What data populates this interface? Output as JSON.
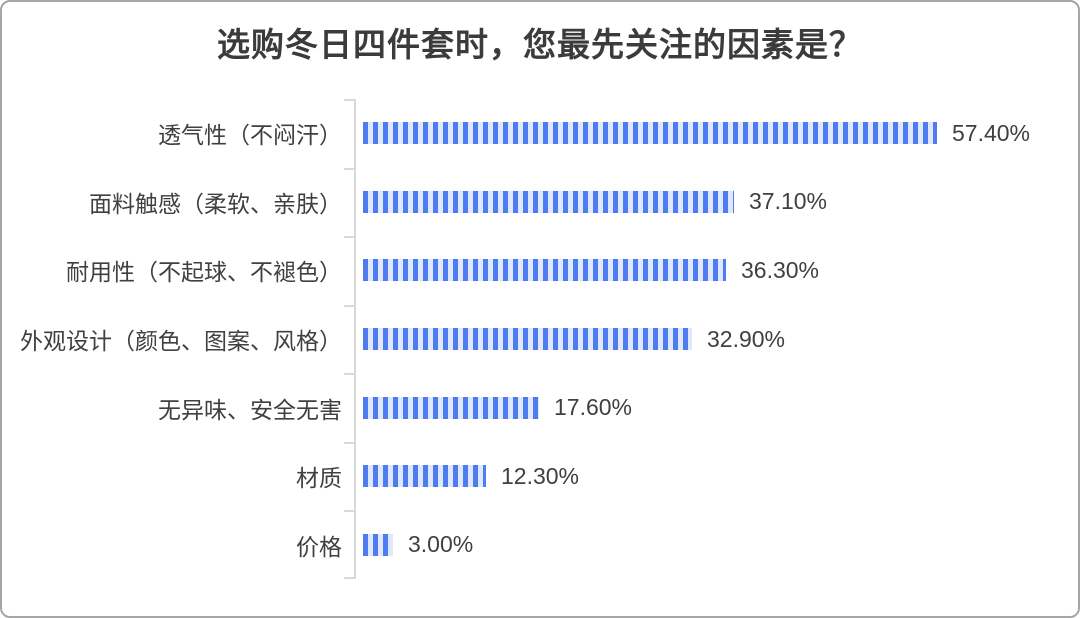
{
  "card": {
    "border_color": "#a6a6a6",
    "background_color": "#ffffff"
  },
  "chart_data": {
    "type": "bar",
    "orientation": "horizontal",
    "title": "选购冬日四件套时，您最先关注的因素是？",
    "categories": [
      "透气性（不闷汗）",
      "面料触感（柔软、亲肤）",
      "耐用性（不起球、不褪色）",
      "外观设计（颜色、图案、风格）",
      "无异味、安全无害",
      "材质",
      "价格"
    ],
    "values": [
      57.4,
      37.1,
      36.3,
      32.9,
      17.6,
      12.3,
      3.0
    ],
    "value_labels": [
      "57.40%",
      "37.10%",
      "36.30%",
      "32.90%",
      "17.60%",
      "12.30%",
      "3.00%"
    ],
    "xlabel": "",
    "ylabel": "",
    "xlim": [
      0,
      60
    ],
    "grid": false,
    "legend": false,
    "bar_style": "vertical-stripes",
    "bar_stripe_color": "#4e7cf0",
    "bar_stripe_gap_color": "#dfe7fb",
    "axis_line_color": "#d9d9d9",
    "text_color": "#404040",
    "title_color": "#3b3b3b"
  }
}
